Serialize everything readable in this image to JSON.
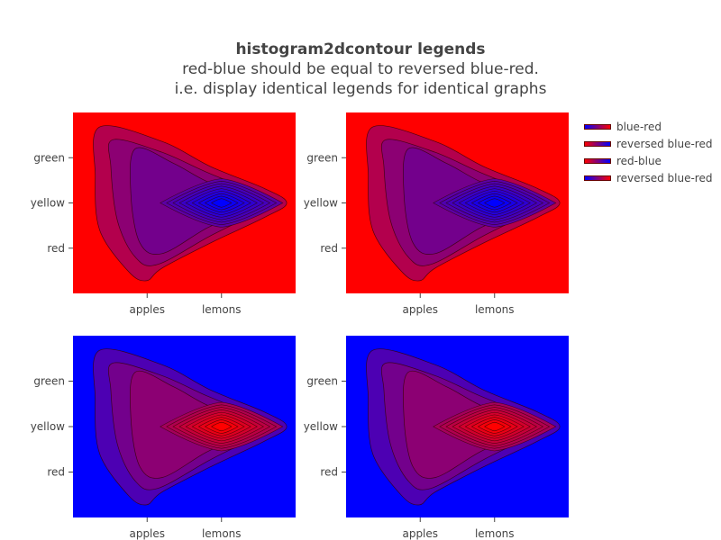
{
  "title": {
    "main": "histogram2dcontour legends",
    "line2": "red-blue should be equal to reversed blue-red.",
    "line3": "i.e. display identical legends for identical graphs"
  },
  "colors": {
    "red": "#ff0000",
    "blue": "#0000ff",
    "contour_line": "#330000"
  },
  "legend": [
    {
      "label": "blue-red",
      "from": "#0000ff",
      "to": "#ff0000"
    },
    {
      "label": "reversed blue-red",
      "from": "#ff0000",
      "to": "#0000ff"
    },
    {
      "label": "red-blue",
      "from": "#ff0000",
      "to": "#0000ff"
    },
    {
      "label": "reversed blue-red",
      "from": "#0000ff",
      "to": "#ff0000"
    }
  ],
  "chart_data": [
    {
      "type": "heatmap",
      "subtype": "histogram2dcontour",
      "name": "blue-red",
      "x_categories": [
        "apples",
        "lemons"
      ],
      "y_categories": [
        "red",
        "yellow",
        "green"
      ],
      "colorscale": [
        "#0000ff",
        "#ff0000"
      ],
      "low_color": "#ff0000",
      "high_color": "#0000ff",
      "peak": {
        "x": "lemons",
        "y": "yellow"
      }
    },
    {
      "type": "heatmap",
      "subtype": "histogram2dcontour",
      "name": "reversed blue-red",
      "x_categories": [
        "apples",
        "lemons"
      ],
      "y_categories": [
        "red",
        "yellow",
        "green"
      ],
      "colorscale": [
        "#0000ff",
        "#ff0000"
      ],
      "reversed": true,
      "low_color": "#ff0000",
      "high_color": "#0000ff",
      "peak": {
        "x": "lemons",
        "y": "yellow"
      }
    },
    {
      "type": "heatmap",
      "subtype": "histogram2dcontour",
      "name": "red-blue",
      "x_categories": [
        "apples",
        "lemons"
      ],
      "y_categories": [
        "red",
        "yellow",
        "green"
      ],
      "colorscale": [
        "#ff0000",
        "#0000ff"
      ],
      "low_color": "#0000ff",
      "high_color": "#ff0000",
      "peak": {
        "x": "lemons",
        "y": "yellow"
      }
    },
    {
      "type": "heatmap",
      "subtype": "histogram2dcontour",
      "name": "reversed blue-red",
      "x_categories": [
        "apples",
        "lemons"
      ],
      "y_categories": [
        "red",
        "yellow",
        "green"
      ],
      "colorscale": [
        "#ff0000",
        "#0000ff"
      ],
      "reversed": true,
      "low_color": "#0000ff",
      "high_color": "#ff0000",
      "peak": {
        "x": "lemons",
        "y": "yellow"
      }
    }
  ]
}
